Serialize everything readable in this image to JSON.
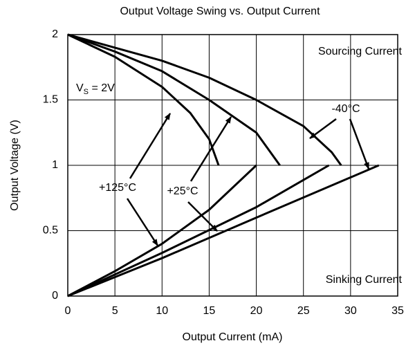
{
  "chart_data": {
    "type": "line",
    "title": "Output Voltage Swing vs. Output Current",
    "x_label": "Output Current (mA)",
    "y_label": "Output Voltage (V)",
    "xlim": [
      0,
      35
    ],
    "xticks": [
      0,
      5,
      10,
      15,
      20,
      25,
      30,
      35
    ],
    "ylim": [
      0,
      2
    ],
    "yticks": [
      0,
      0.5,
      1,
      1.5,
      2
    ],
    "grid": true,
    "series": [
      {
        "color": "#000000",
        "x": [
          0,
          5,
          10,
          13,
          15,
          16
        ],
        "values": [
          2,
          1.83,
          1.6,
          1.4,
          1.2,
          1
        ]
      },
      {
        "color": "#000000",
        "x": [
          0,
          5,
          10,
          15,
          20,
          22.5
        ],
        "values": [
          2,
          1.87,
          1.72,
          1.5,
          1.25,
          1
        ]
      },
      {
        "color": "#000000",
        "x": [
          0,
          5,
          10,
          15,
          20,
          25,
          28,
          29
        ],
        "values": [
          2,
          1.9,
          1.8,
          1.67,
          1.5,
          1.3,
          1.1,
          1
        ]
      },
      {
        "color": "#000000",
        "x": [
          0,
          5,
          10,
          15,
          20
        ],
        "values": [
          0,
          0.19,
          0.4,
          0.66,
          1
        ]
      },
      {
        "color": "#000000",
        "x": [
          0,
          10,
          20,
          27.7
        ],
        "values": [
          0,
          0.33,
          0.68,
          1
        ]
      },
      {
        "color": "#000000",
        "x": [
          0,
          10,
          20,
          33
        ],
        "values": [
          0,
          0.29,
          0.6,
          1
        ]
      }
    ],
    "annotations": [
      "Sourcing Current",
      "Sinking Current",
      "+125°C",
      "+25°C",
      "-40°C"
    ],
    "vs_label": {
      "main": "V",
      "sub": "S",
      "rest": " = 2V"
    }
  }
}
